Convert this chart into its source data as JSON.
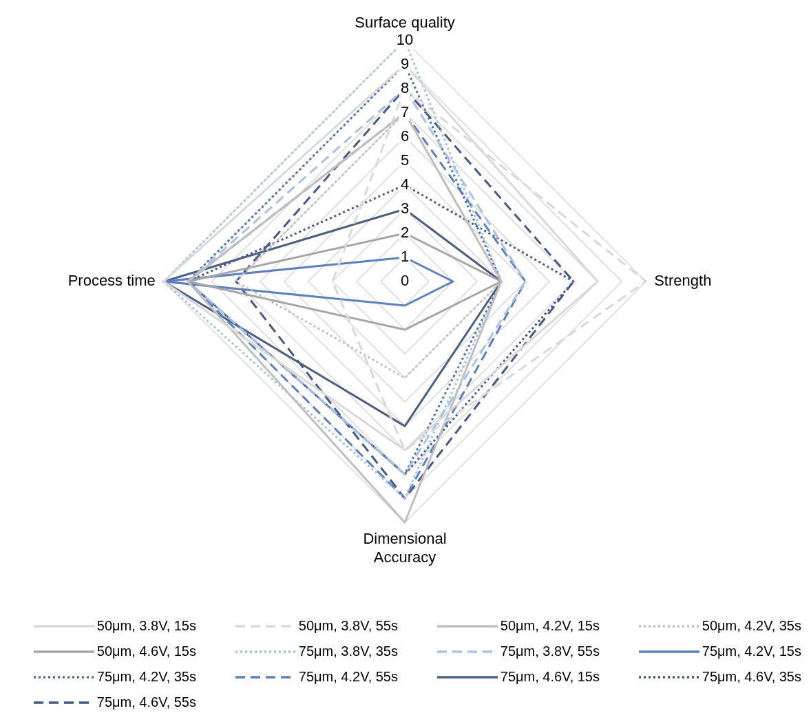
{
  "chart_data": {
    "type": "radar",
    "categories": [
      "Surface quality",
      "Strength",
      "Dimensional\nAccuracy",
      "Process time"
    ],
    "ylim": [
      0,
      10
    ],
    "yticks": [
      0,
      1,
      2,
      3,
      4,
      5,
      6,
      7,
      8,
      9,
      10
    ],
    "grid": true,
    "legend": "bottom",
    "marker": "none",
    "series": [
      {
        "name": "50μm, 3.8V, 15s",
        "color": "#d9d9d9",
        "line_style": "solid",
        "values": [
          9,
          8,
          7,
          10
        ]
      },
      {
        "name": "50μm, 3.8V, 55s",
        "color": "#d9d9d9",
        "line_style": "dashed",
        "values": [
          8,
          10,
          7,
          3
        ]
      },
      {
        "name": "50μm, 4.2V, 15s",
        "color": "#bfbfbf",
        "line_style": "solid",
        "values": [
          7,
          4,
          10,
          9
        ]
      },
      {
        "name": "50μm, 4.2V, 35s",
        "color": "#bfbfbf",
        "line_style": "dotted",
        "values": [
          7,
          4,
          4,
          7
        ]
      },
      {
        "name": "50μm, 4.6V, 15s",
        "color": "#a6a6a6",
        "line_style": "solid",
        "values": [
          2,
          4,
          2,
          9
        ]
      },
      {
        "name": "75μm, 3.8V, 35s",
        "color": "#9dc3e6",
        "line_style": "dotted",
        "values": [
          10,
          4,
          9,
          10
        ]
      },
      {
        "name": "75μm, 3.8V, 55s",
        "color": "#a9c1e6",
        "line_style": "dashed",
        "values": [
          8,
          5,
          8,
          9
        ]
      },
      {
        "name": "75μm, 4.2V, 15s",
        "color": "#5b7fbf",
        "line_style": "solid",
        "values": [
          1,
          2,
          1,
          10
        ]
      },
      {
        "name": "75μm, 4.2V, 35s",
        "color": "#4a6fb0",
        "line_style": "dotted",
        "values": [
          9,
          4,
          8,
          9
        ]
      },
      {
        "name": "75μm, 4.2V, 55s",
        "color": "#5b7fbf",
        "line_style": "dashed",
        "values": [
          7,
          5,
          9,
          9
        ]
      },
      {
        "name": "75μm, 4.6V, 15s",
        "color": "#4c5f83",
        "line_style": "solid",
        "values": [
          3,
          4,
          6,
          10
        ]
      },
      {
        "name": "75μm, 4.6V, 35s",
        "color": "#44588a",
        "line_style": "dotted",
        "values": [
          4,
          7,
          8,
          9
        ]
      },
      {
        "name": "75μm, 4.6V, 55s",
        "color": "#44588a",
        "line_style": "dashed",
        "values": [
          8,
          7,
          9,
          7
        ]
      }
    ]
  }
}
